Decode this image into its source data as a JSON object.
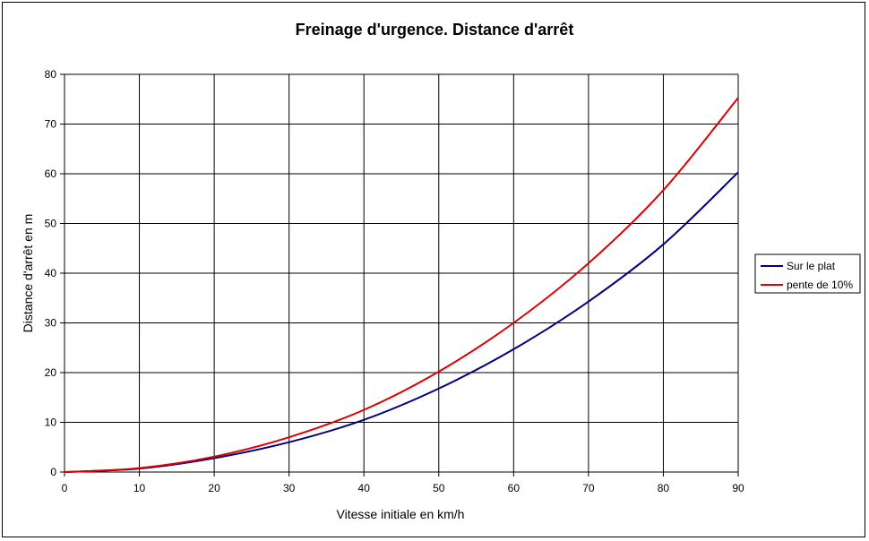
{
  "chart_data": {
    "type": "line",
    "title": "Freinage d'urgence. Distance d'arrêt",
    "xlabel": "Vitesse initiale en km/h",
    "ylabel": "Distance d'arrêt en m",
    "xlim": [
      0,
      90
    ],
    "ylim": [
      0,
      80
    ],
    "xticks": [
      "0",
      "10",
      "20",
      "30",
      "40",
      "50",
      "60",
      "70",
      "80",
      "90"
    ],
    "yticks": [
      "0",
      "10",
      "20",
      "30",
      "40",
      "50",
      "60",
      "70",
      "80"
    ],
    "grid": true,
    "legend_position": "right",
    "x": [
      0,
      10,
      20,
      30,
      40,
      50,
      60,
      70,
      80,
      90
    ],
    "series": [
      {
        "name": "Sur le plat",
        "color": "#000080",
        "values": [
          0,
          0.7,
          2.8,
          6.0,
          10.5,
          16.8,
          24.7,
          34.3,
          45.8,
          60.3
        ]
      },
      {
        "name": "pente de 10%",
        "color": "#dd0000",
        "values": [
          0,
          0.8,
          3.1,
          7.0,
          12.5,
          20.2,
          30.0,
          42.0,
          56.7,
          75.3
        ]
      }
    ]
  }
}
